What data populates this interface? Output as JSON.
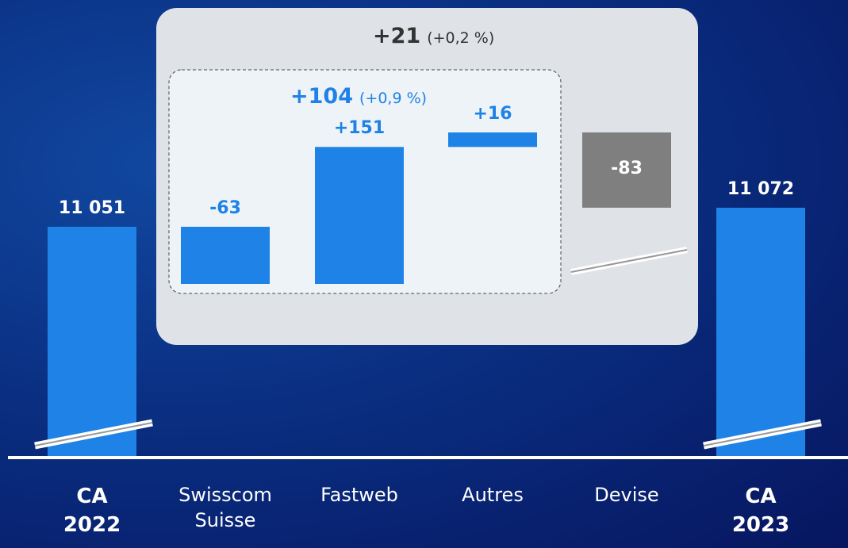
{
  "chart_data": {
    "type": "waterfall",
    "categories": [
      "CA 2022",
      "Swisscom Suisse",
      "Fastweb",
      "Autres",
      "Devise",
      "CA 2023"
    ],
    "values": [
      11051,
      -63,
      151,
      16,
      -83,
      11072
    ],
    "value_labels": [
      "11 051",
      "-63",
      "+151",
      "+16",
      "-83",
      "11 072"
    ],
    "colors": [
      "#1e82e6",
      "#1e82e6",
      "#1e82e6",
      "#1e82e6",
      "#7f7f7f",
      "#1e82e6"
    ],
    "annotations": [
      {
        "text": "+21",
        "detail": "(+0,2 %)"
      },
      {
        "text": "+104",
        "detail": "(+0,9 %)"
      }
    ]
  }
}
